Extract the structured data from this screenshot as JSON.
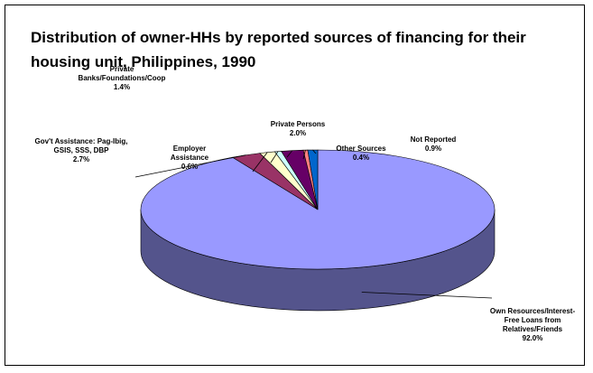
{
  "chart_data": {
    "type": "pie3d",
    "title": "Distribution of owner-HHs by reported sources of financing for their housing unit, Philippines, 1990",
    "categories": [
      "Own Resources/Interest-Free Loans from Relatives/Friends",
      "Gov't Assistance: Pag-Ibig, GSIS, SSS, DBP",
      "Private Banks/Foundations/Coop",
      "Employer Assistance",
      "Private Persons",
      "Other Sources",
      "Not Reported"
    ],
    "values": [
      92.0,
      2.7,
      1.4,
      0.6,
      2.0,
      0.4,
      0.9
    ],
    "value_labels": [
      "92.0%",
      "2.7%",
      "1.4%",
      "0.6%",
      "2.0%",
      "0.4%",
      "0.9%"
    ],
    "colors": [
      "#9999ff",
      "#993366",
      "#ffffcc",
      "#ccffff",
      "#660066",
      "#ff8080",
      "#0066cc"
    ]
  }
}
